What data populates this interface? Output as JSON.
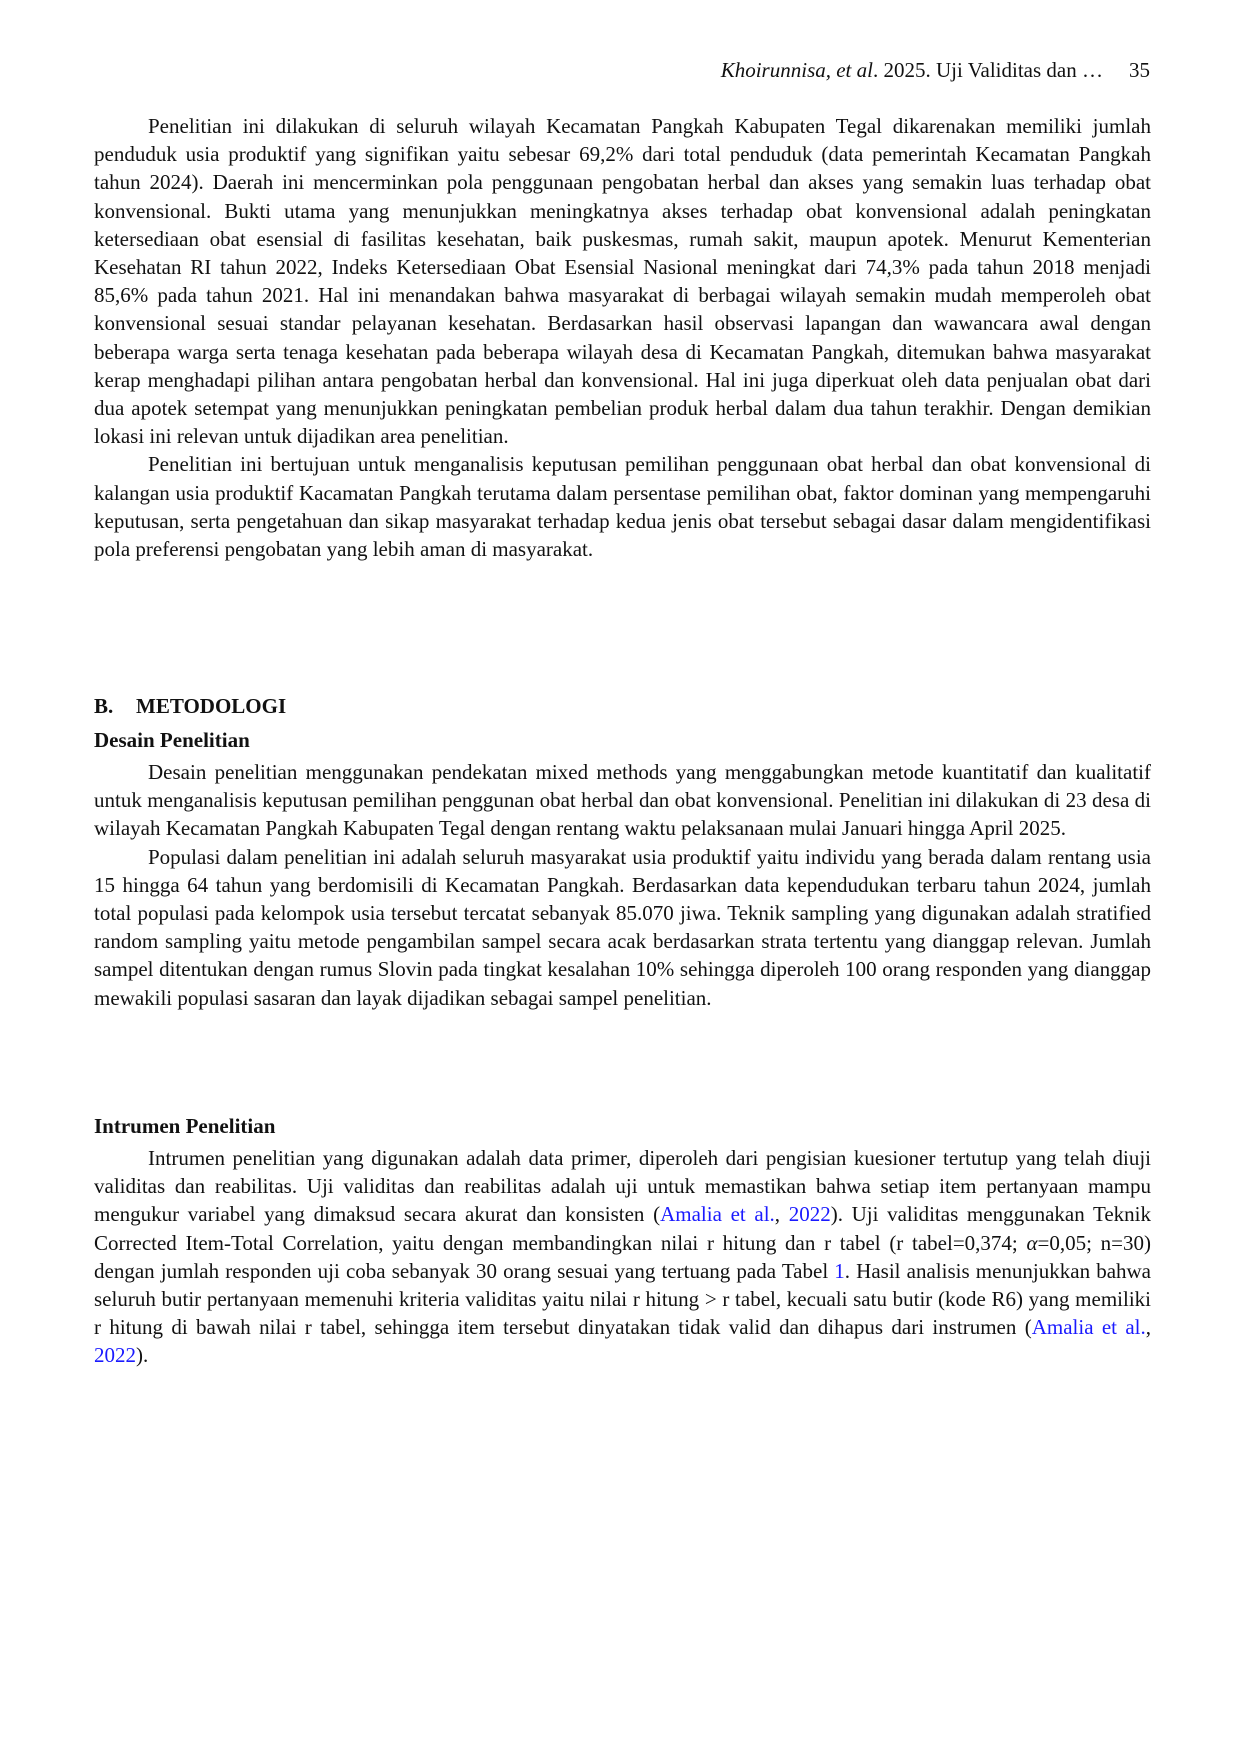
{
  "header": {
    "authors": "Khoirunnisa, et al",
    "rest": ". 2025. Uji Validitas dan …",
    "page_number": "35"
  },
  "intro": {
    "p1": "Penelitian ini dilakukan di seluruh wilayah Kecamatan Pangkah Kabupaten Tegal dikarenakan memiliki jumlah penduduk usia produktif yang signifikan yaitu sebesar 69,2% dari total penduduk (data pemerintah Kecamatan Pangkah tahun 2024). Daerah ini mencerminkan pola penggunaan pengobatan herbal dan akses yang semakin luas terhadap obat konvensional. Bukti utama yang menunjukkan meningkatnya akses terhadap obat konvensional adalah peningkatan ketersediaan obat esensial di fasilitas kesehatan, baik puskesmas, rumah sakit, maupun apotek. Menurut Kementerian Kesehatan RI tahun 2022, Indeks Ketersediaan Obat Esensial Nasional meningkat dari 74,3% pada tahun 2018 menjadi 85,6% pada tahun 2021. Hal ini menandakan bahwa masyarakat di berbagai wilayah semakin mudah memperoleh obat konvensional sesuai standar pelayanan kesehatan. Berdasarkan hasil observasi lapangan dan wawancara awal dengan beberapa warga serta tenaga kesehatan pada beberapa wilayah desa di Kecamatan Pangkah, ditemukan bahwa masyarakat kerap menghadapi pilihan antara pengobatan herbal dan konvensional. Hal ini juga diperkuat oleh data penjualan obat dari dua apotek setempat yang menunjukkan peningkatan pembelian produk herbal dalam dua tahun terakhir. Dengan demikian lokasi ini relevan untuk dijadikan area penelitian.",
    "p2": "Penelitian ini bertujuan untuk menganalisis keputusan pemilihan penggunaan obat herbal dan obat konvensional di kalangan usia produktif Kacamatan Pangkah terutama dalam persentase pemilihan obat, faktor dominan yang mempengaruhi keputusan, serta pengetahuan dan sikap masyarakat terhadap kedua jenis obat tersebut sebagai dasar dalam mengidentifikasi pola preferensi pengobatan yang lebih aman di masyarakat."
  },
  "section_b": {
    "number": "B.",
    "title": "METODOLOGI",
    "desain": {
      "heading": "Desain Penelitian",
      "p1": "Desain penelitian menggunakan pendekatan mixed methods yang menggabungkan metode kuantitatif dan kualitatif untuk menganalisis keputusan pemilihan penggunan obat herbal dan obat konvensional. Penelitian ini dilakukan di 23 desa di wilayah Kecamatan Pangkah Kabupaten Tegal dengan rentang waktu pelaksanaan mulai Januari hingga April 2025.",
      "p2": "Populasi dalam penelitian ini adalah seluruh masyarakat usia produktif yaitu individu yang berada dalam rentang usia 15 hingga 64 tahun yang berdomisili di Kecamatan Pangkah. Berdasarkan data kependudukan terbaru tahun 2024, jumlah total populasi pada kelompok usia tersebut tercatat sebanyak 85.070 jiwa. Teknik sampling yang digunakan adalah stratified random sampling yaitu metode pengambilan sampel secara acak berdasarkan strata tertentu yang dianggap relevan. Jumlah sampel ditentukan dengan rumus Slovin pada tingkat kesalahan 10% sehingga diperoleh 100 orang responden yang dianggap mewakili populasi sasaran dan layak dijadikan sebagai sampel penelitian."
    },
    "instrumen": {
      "heading": "Intrumen Penelitian",
      "t1": "Intrumen penelitian yang digunakan adalah data primer, diperoleh dari pengisian kuesioner tertutup yang telah diuji validitas dan reabilitas. Uji validitas dan reabilitas adalah uji untuk memastikan bahwa setiap item pertanyaan mampu mengukur variabel yang dimaksud secara akurat dan konsisten (",
      "cite1_name": "Amalia et al.",
      "cite1_year": "2022",
      "t2": "). Uji validitas menggunakan Teknik Corrected Item-Total Correlation, yaitu dengan membandingkan nilai r hitung dan r tabel (r tabel=0,374; ",
      "alpha": "α",
      "t3": "=0,05; n=30) dengan jumlah responden uji coba sebanyak 30 orang sesuai yang tertuang pada Tabel ",
      "table_ref": "1",
      "t4": ". Hasil analisis menunjukkan bahwa seluruh butir pertanyaan memenuhi kriteria validitas yaitu nilai r hitung > r tabel, kecuali satu butir (kode R6) yang memiliki r hitung di bawah nilai r tabel, sehingga item tersebut dinyatakan tidak valid dan dihapus dari instrumen (",
      "cite2_name": "Amalia et al.",
      "cite2_year": "2022",
      "t5": ")."
    }
  },
  "colors": {
    "link": "#1a1aff",
    "text": "#111111"
  }
}
